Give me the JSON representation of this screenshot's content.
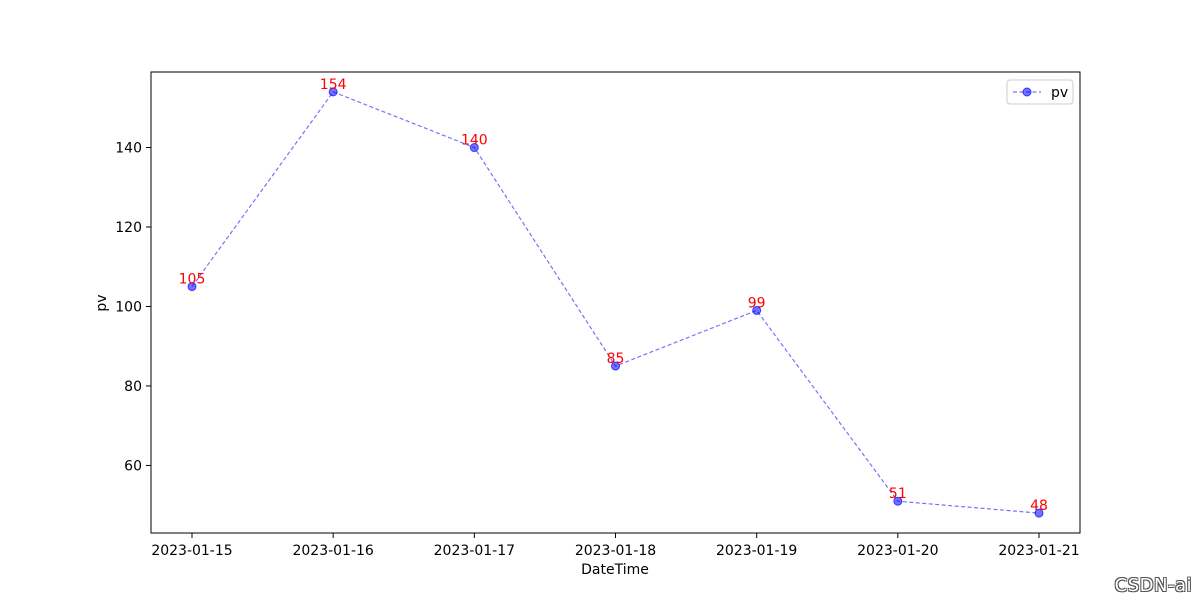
{
  "chart_data": {
    "type": "line",
    "x": [
      "2023-01-15",
      "2023-01-16",
      "2023-01-17",
      "2023-01-18",
      "2023-01-19",
      "2023-01-20",
      "2023-01-21"
    ],
    "series": [
      {
        "name": "pv",
        "values": [
          105,
          154,
          140,
          85,
          99,
          51,
          48
        ]
      }
    ],
    "xlabel": "DateTime",
    "ylabel": "pv",
    "ylim": [
      43,
      159
    ],
    "yticks": [
      60,
      80,
      100,
      120,
      140
    ],
    "data_labels": [
      "105",
      "154",
      "140",
      "85",
      "99",
      "51",
      "48"
    ],
    "grid": false,
    "legend": "top-right",
    "colors": {
      "line": "#0000ff",
      "marker": "#0000ff",
      "data_label": "#ff0000"
    }
  },
  "watermark": "CSDN-ai"
}
